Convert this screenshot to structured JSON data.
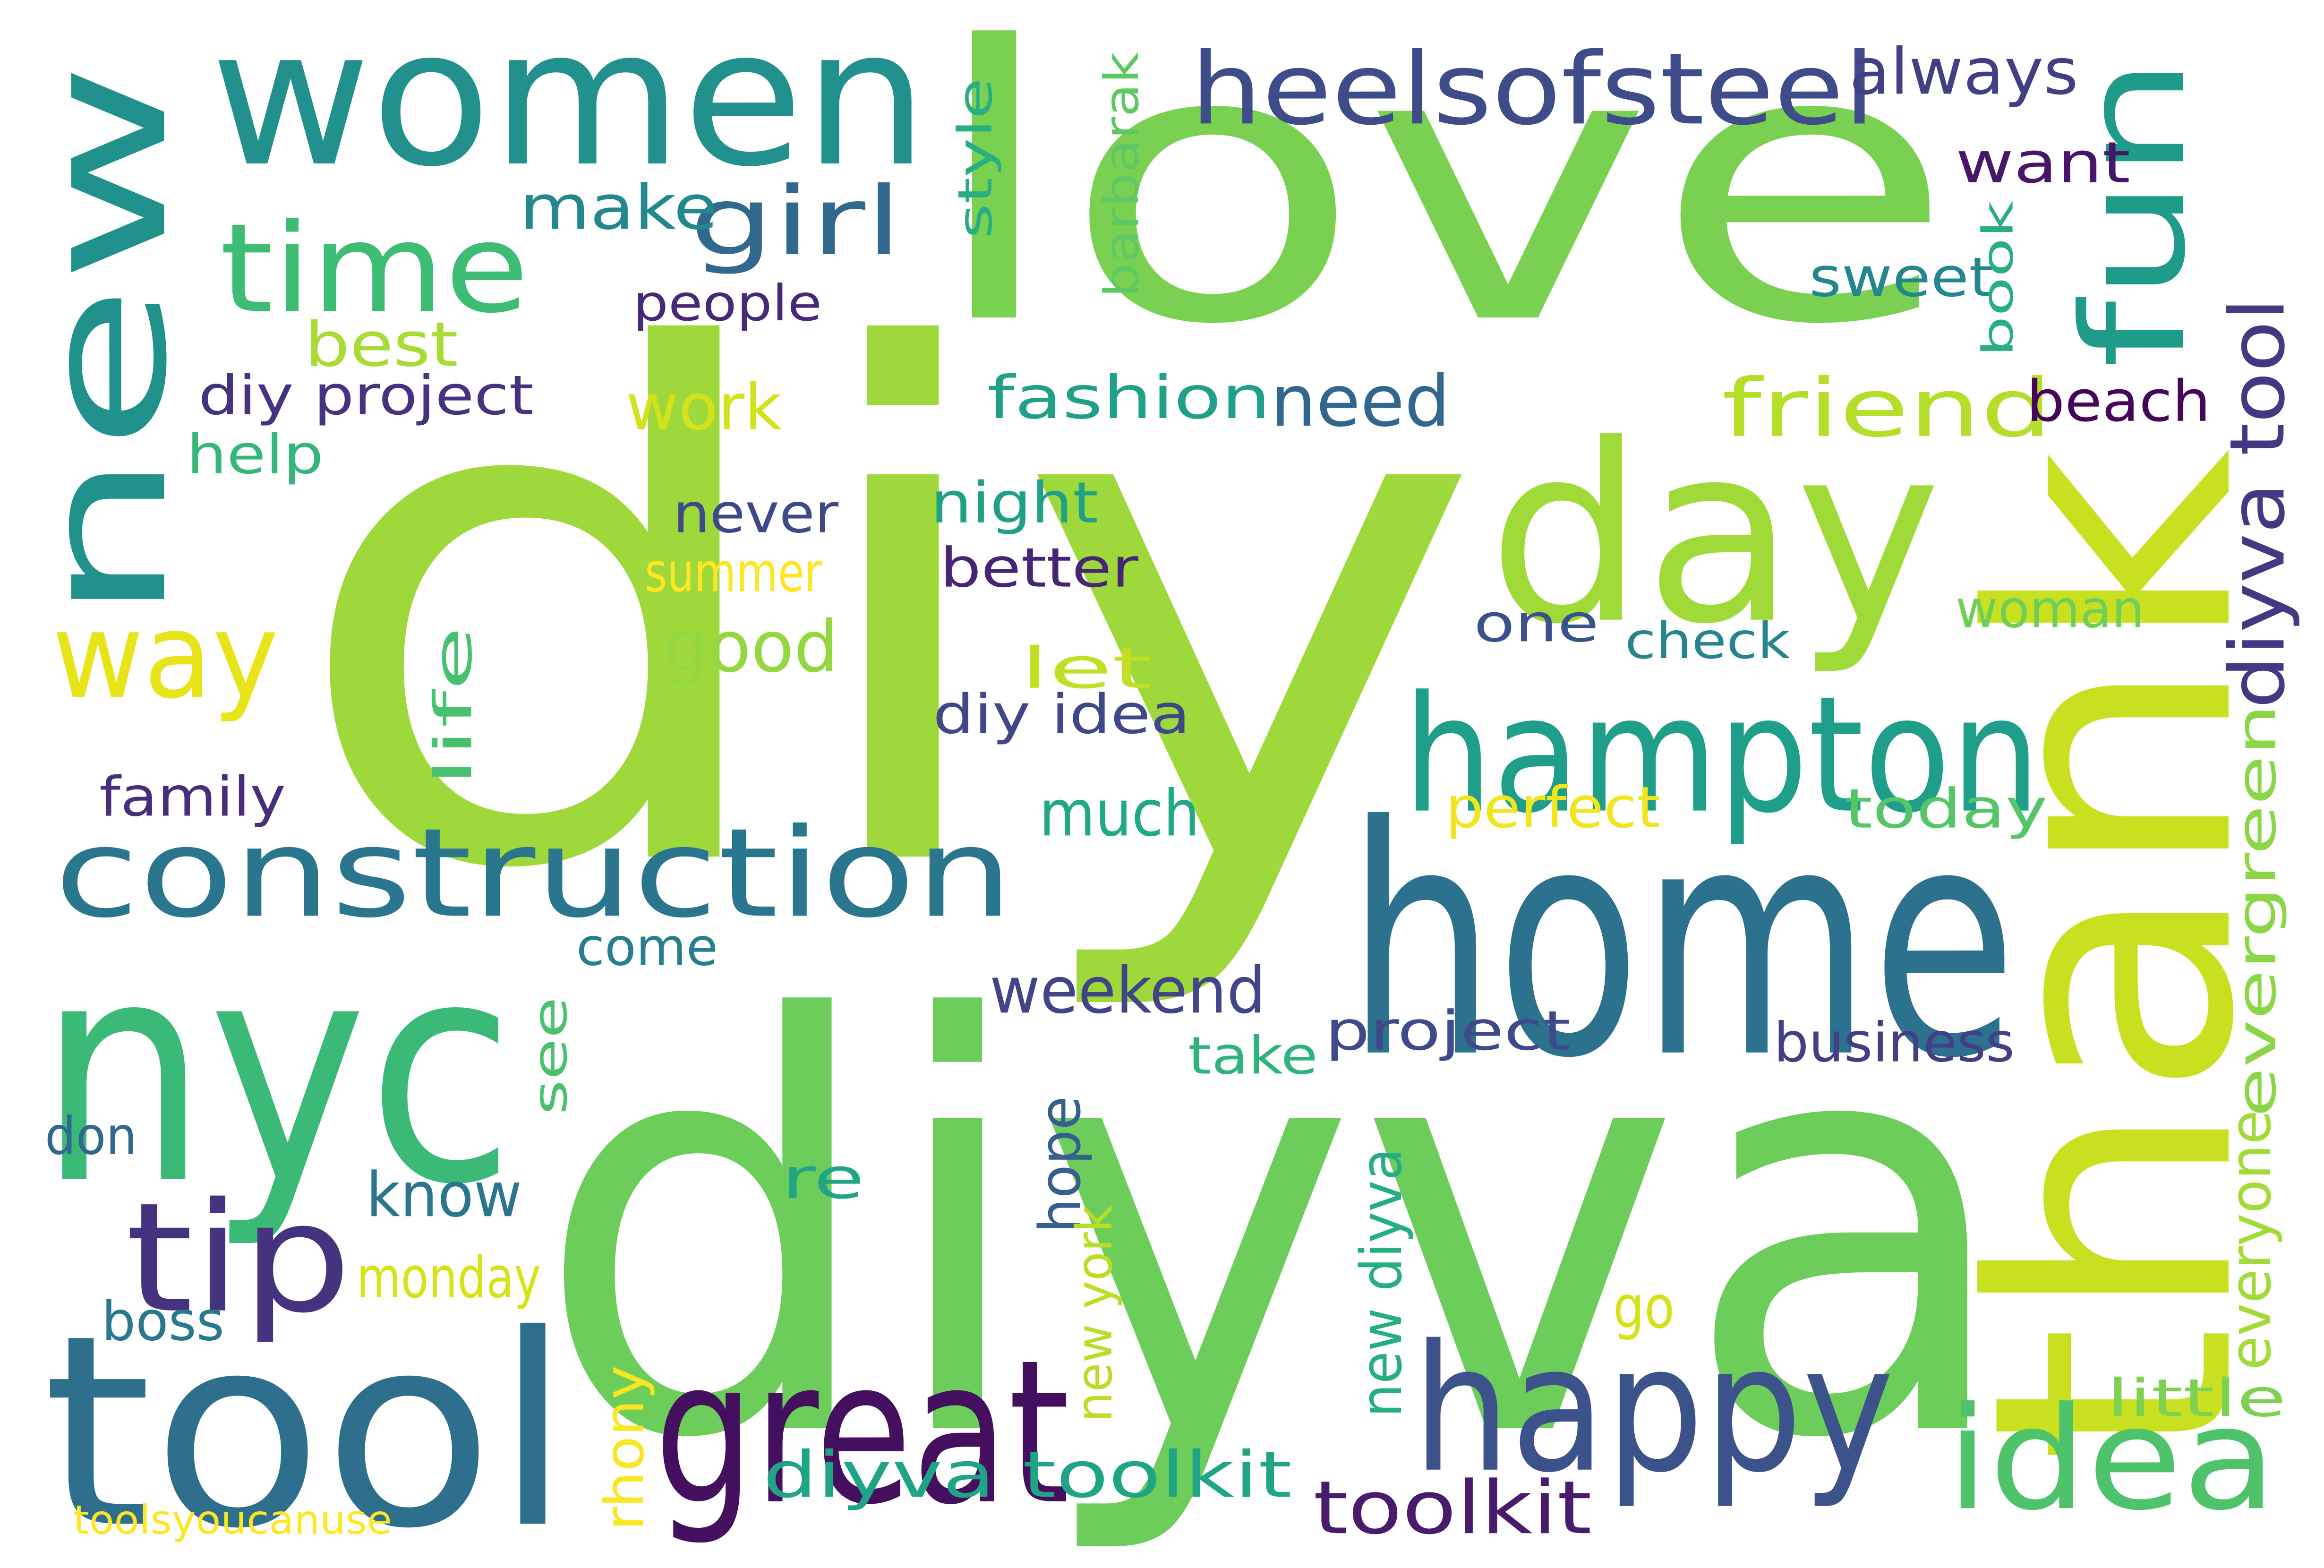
{
  "words": [
    {
      "text": "diy",
      "color": "#9fd83a"
    },
    {
      "text": "love",
      "color": "#7ad151"
    },
    {
      "text": "diyva",
      "color": "#6ccd5a"
    },
    {
      "text": "women",
      "color": "#22908c"
    },
    {
      "text": "new",
      "color": "#21918c"
    },
    {
      "text": "thank",
      "color": "#c8e020"
    },
    {
      "text": "home",
      "color": "#2c718e"
    },
    {
      "text": "nyc",
      "color": "#3aba76"
    },
    {
      "text": "tool",
      "color": "#2e6f8e"
    },
    {
      "text": "day",
      "color": "#a0da39"
    },
    {
      "text": "hampton",
      "color": "#1f9e89"
    },
    {
      "text": "happy",
      "color": "#3b528b"
    },
    {
      "text": "great",
      "color": "#440f5f"
    },
    {
      "text": "construction",
      "color": "#2a768e"
    },
    {
      "text": "tip",
      "color": "#46337f"
    },
    {
      "text": "idea",
      "color": "#4ec36b"
    },
    {
      "text": "way",
      "color": "#e7e419"
    },
    {
      "text": "time",
      "color": "#3dbc74"
    },
    {
      "text": "fun",
      "color": "#1e9c89"
    },
    {
      "text": "heelsofsteel",
      "color": "#3e4c8a"
    },
    {
      "text": "friend",
      "color": "#b5de2b"
    },
    {
      "text": "girl",
      "color": "#30688e"
    },
    {
      "text": "diyva tool",
      "color": "#453882"
    },
    {
      "text": "diyva toolkit",
      "color": "#20a486"
    },
    {
      "text": "toolkit",
      "color": "#481b6d"
    },
    {
      "text": "fashion",
      "color": "#1fa088"
    },
    {
      "text": "need",
      "color": "#31668e"
    },
    {
      "text": "good",
      "color": "#93d741"
    },
    {
      "text": "work",
      "color": "#d2e21b"
    },
    {
      "text": "weekend",
      "color": "#414487"
    },
    {
      "text": "much",
      "color": "#22a884"
    },
    {
      "text": "always",
      "color": "#423f85"
    },
    {
      "text": "make",
      "color": "#23888e"
    },
    {
      "text": "best",
      "color": "#a8db34"
    },
    {
      "text": "diy project",
      "color": "#46327e"
    },
    {
      "text": "people",
      "color": "#482878"
    },
    {
      "text": "style",
      "color": "#28ae80"
    },
    {
      "text": "barbarak",
      "color": "#5ec962"
    },
    {
      "text": "want",
      "color": "#481668"
    },
    {
      "text": "sweet",
      "color": "#24868e"
    },
    {
      "text": "book",
      "color": "#29af7f"
    },
    {
      "text": "beach",
      "color": "#450559"
    },
    {
      "text": "help",
      "color": "#35b779"
    },
    {
      "text": "never",
      "color": "#3e4989"
    },
    {
      "text": "night",
      "color": "#1fa187"
    },
    {
      "text": "summer",
      "color": "#fde725"
    },
    {
      "text": "better",
      "color": "#482475"
    },
    {
      "text": "one",
      "color": "#3b518b"
    },
    {
      "text": "check",
      "color": "#25848e"
    },
    {
      "text": "woman",
      "color": "#6ece58"
    },
    {
      "text": "let",
      "color": "#c0df25"
    },
    {
      "text": "life",
      "color": "#48c16e"
    },
    {
      "text": "diy idea",
      "color": "#3f4788"
    },
    {
      "text": "family",
      "color": "#472d7b"
    },
    {
      "text": "perfect",
      "color": "#f1e51d"
    },
    {
      "text": "today",
      "color": "#54c568"
    },
    {
      "text": "evergreen",
      "color": "#8bd646"
    },
    {
      "text": "come",
      "color": "#277f8e"
    },
    {
      "text": "see",
      "color": "#4ac16d"
    },
    {
      "text": "project",
      "color": "#3e4a89"
    },
    {
      "text": "take",
      "color": "#2eb37c"
    },
    {
      "text": "business",
      "color": "#433e85"
    },
    {
      "text": "don",
      "color": "#31688e"
    },
    {
      "text": "know",
      "color": "#2b758e"
    },
    {
      "text": "re",
      "color": "#21a685"
    },
    {
      "text": "hope",
      "color": "#355f8d"
    },
    {
      "text": "monday",
      "color": "#d8e219"
    },
    {
      "text": "new york",
      "color": "#bade28"
    },
    {
      "text": "new diyva",
      "color": "#26ad81"
    },
    {
      "text": "everyone",
      "color": "#a2da37"
    },
    {
      "text": "boss",
      "color": "#2a788e"
    },
    {
      "text": "go",
      "color": "#d5e21a"
    },
    {
      "text": "rhony",
      "color": "#f8e621"
    },
    {
      "text": "little",
      "color": "#7cd250"
    },
    {
      "text": "toolsyoucanuse",
      "color": "#fde725"
    }
  ]
}
